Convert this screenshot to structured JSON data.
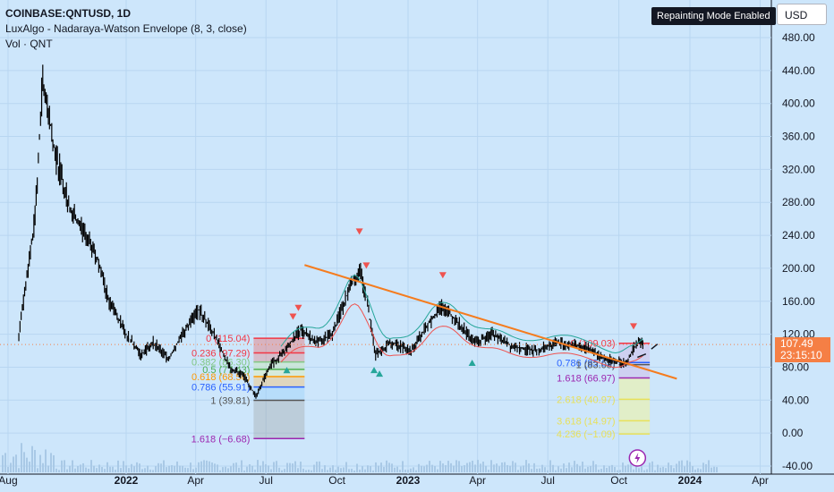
{
  "header": {
    "symbol_line": "COINBASE:QNTUSD, 1D",
    "indicator_line": "LuxAlgo - Nadaraya-Watson Envelope (8, 3, close)",
    "volume_line": "Vol · QNT"
  },
  "badge": "Repainting Mode Enabled",
  "currency": "USD",
  "last_price": {
    "value": "107.49",
    "countdown": "23:15:10"
  },
  "colors": {
    "background": "#cde6fb",
    "candle": "#000000",
    "trendline": "#f57c1e",
    "envelope_upper": "#26a69a",
    "envelope_lower": "#ef5350",
    "price_label": "#f57f45",
    "signal_down": "#ef5350",
    "signal_up": "#26a69a"
  },
  "chart_data": {
    "type": "line",
    "title": "COINBASE:QNTUSD, 1D",
    "x_ticks": [
      "Aug",
      "2022",
      "Apr",
      "Jul",
      "Oct",
      "2023",
      "Apr",
      "Jul",
      "Oct",
      "2024",
      "Apr"
    ],
    "y_ticks": [
      "480.00",
      "440.00",
      "400.00",
      "360.00",
      "320.00",
      "280.00",
      "240.00",
      "200.00",
      "160.00",
      "120.00",
      "80.00",
      "40.00",
      "0.00",
      "-40.00"
    ],
    "ylim": [
      -40,
      480
    ],
    "grid": true,
    "series": [
      {
        "x": [
          "2021-08-15",
          "2021-09-05",
          "2021-09-15",
          "2021-10-01",
          "2021-10-20",
          "2021-11-10",
          "2021-11-25",
          "2021-12-10",
          "2022-01-01",
          "2022-01-20",
          "2022-02-05",
          "2022-02-25",
          "2022-03-15",
          "2022-04-05",
          "2022-04-25",
          "2022-05-15",
          "2022-06-01",
          "2022-06-18",
          "2022-07-05",
          "2022-07-25",
          "2022-08-15",
          "2022-09-05",
          "2022-09-25",
          "2022-10-15",
          "2022-10-30",
          "2022-11-08",
          "2022-11-20",
          "2022-12-10",
          "2023-01-05",
          "2023-01-25",
          "2023-02-15",
          "2023-03-10",
          "2023-03-30",
          "2023-04-20",
          "2023-05-15",
          "2023-06-15",
          "2023-07-15",
          "2023-08-15",
          "2023-09-15",
          "2023-10-10",
          "2023-10-25",
          "2023-11-01"
        ],
        "values": [
          120,
          260,
          430,
          340,
          270,
          240,
          210,
          160,
          120,
          95,
          110,
          90,
          120,
          150,
          120,
          80,
          70,
          45,
          80,
          100,
          125,
          110,
          120,
          170,
          200,
          165,
          95,
          110,
          100,
          130,
          155,
          130,
          110,
          120,
          105,
          100,
          110,
          105,
          90,
          85,
          110,
          107.49
        ]
      }
    ],
    "fib_left": {
      "levels": [
        "0 (115.04)",
        "0.236 (97.29)",
        "0.382 (86.30)",
        "0.5 (77.43)",
        "0.618 (68.56)",
        "0.786 (55.91)",
        "1 (39.81)",
        "1.618 (−6.68)"
      ],
      "values": [
        115.04,
        97.29,
        86.3,
        77.43,
        68.56,
        55.91,
        39.81,
        -6.68
      ]
    },
    "fib_right": {
      "levels": [
        "0 (109.03)",
        "0.786 (85.63)",
        "1 (83.03)",
        "1.618 (66.97)",
        "2.618 (40.97)",
        "3.618 (14.97)",
        "4.236 (−1.09)"
      ],
      "values": [
        109.03,
        85.63,
        83.03,
        66.97,
        40.97,
        14.97,
        -1.09
      ]
    },
    "trendline": {
      "x": [
        "2022-08-20",
        "2023-12-15"
      ],
      "y": [
        204,
        66
      ]
    },
    "signals_down": [
      "2022-08-05",
      "2022-08-12",
      "2022-10-30",
      "2022-11-08",
      "2023-02-15",
      "2023-10-20"
    ],
    "signals_up": [
      "2022-07-28",
      "2022-11-18",
      "2022-11-25",
      "2023-03-25"
    ]
  }
}
